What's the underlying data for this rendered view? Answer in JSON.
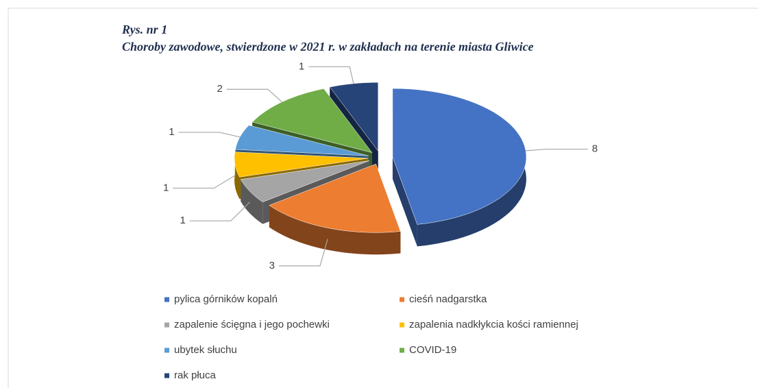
{
  "chart_data": {
    "type": "pie",
    "title": "Rys. nr 1",
    "subtitle": "Choroby zawodowe, stwierdzone w 2021 r. w zakładach na terenie miasta Gliwice",
    "categories": [
      "pylica górników kopalń",
      "cieśń nadgarstka",
      "zapalenie ścięgna i jego pochewki",
      "zapalenia nadkłykcia kości ramiennej",
      "ubytek słuchu",
      "COVID-19",
      "rak płuca"
    ],
    "values": [
      8,
      3,
      1,
      1,
      1,
      2,
      1
    ],
    "colors": [
      "#4472c4",
      "#ed7d31",
      "#a5a5a5",
      "#ffc000",
      "#5b9bd5",
      "#70ad47",
      "#264478"
    ]
  }
}
